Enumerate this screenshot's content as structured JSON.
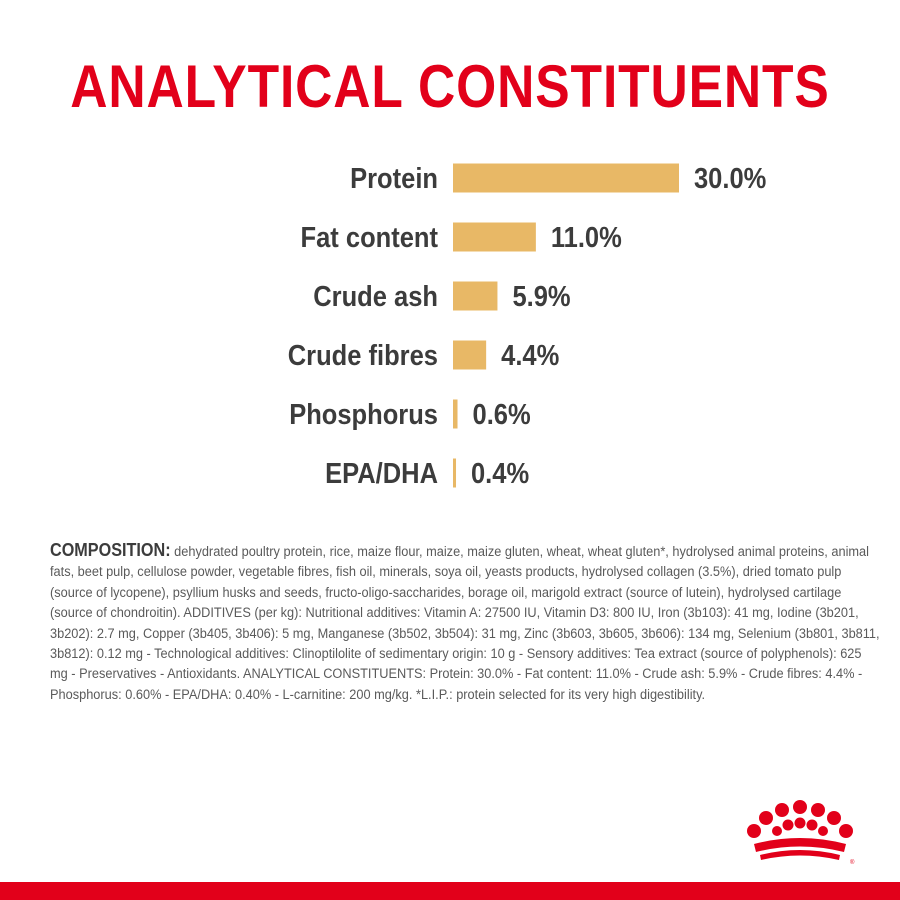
{
  "title": "ANALYTICAL CONSTITUENTS",
  "chart_data": {
    "type": "bar",
    "orientation": "horizontal",
    "title": "ANALYTICAL CONSTITUENTS",
    "categories": [
      "Protein",
      "Fat content",
      "Crude ash",
      "Crude fibres",
      "Phosphorus",
      "EPA/DHA"
    ],
    "values": [
      30.0,
      11.0,
      5.9,
      4.4,
      0.6,
      0.4
    ],
    "value_labels": [
      "30.0%",
      "11.0%",
      "5.9%",
      "4.4%",
      "0.6%",
      "0.4%"
    ],
    "xlim": [
      0,
      30
    ],
    "grid": false,
    "bar_color": "#e8b866"
  },
  "composition": {
    "label": "COMPOSITION:",
    "text": " dehydrated poultry protein, rice, maize flour, maize, maize gluten, wheat, wheat gluten*, hydrolysed animal proteins, animal fats, beet pulp, cellulose powder, vegetable fibres, fish oil, minerals, soya oil, yeasts products, hydrolysed collagen (3.5%), dried tomato pulp (source of lycopene), psyllium husks and seeds, fructo-oligo-saccharides, borage oil, marigold extract (source of lutein), hydrolysed cartilage (source of chondroitin). ADDITIVES (per kg): Nutritional additives: Vitamin A: 27500 IU, Vitamin D3: 800 IU, Iron (3b103): 41 mg, Iodine (3b201, 3b202): 2.7 mg, Copper (3b405, 3b406): 5 mg, Manganese (3b502, 3b504): 31 mg, Zinc (3b603, 3b605, 3b606): 134 mg, Selenium (3b801, 3b811, 3b812): 0.12 mg - Technological additives: Clinoptilolite of sedimentary origin: 10 g - Sensory additives: Tea extract (source of polyphenols): 625 mg - Preservatives - Antioxidants. ANALYTICAL CONSTITUENTS: Protein: 30.0% - Fat content: 11.0% - Crude ash: 5.9% - Crude fibres: 4.4% - Phosphorus: 0.60% - EPA/DHA: 0.40% - L-carnitine: 200 mg/kg. *L.I.P.: protein selected for its very high digestibility."
  },
  "colors": {
    "brand_red": "#e2001a",
    "bar": "#e8b866",
    "text_dark": "#3c3c3c",
    "text_body": "#5a5a5a"
  },
  "icons": {
    "logo": "crown-icon"
  }
}
